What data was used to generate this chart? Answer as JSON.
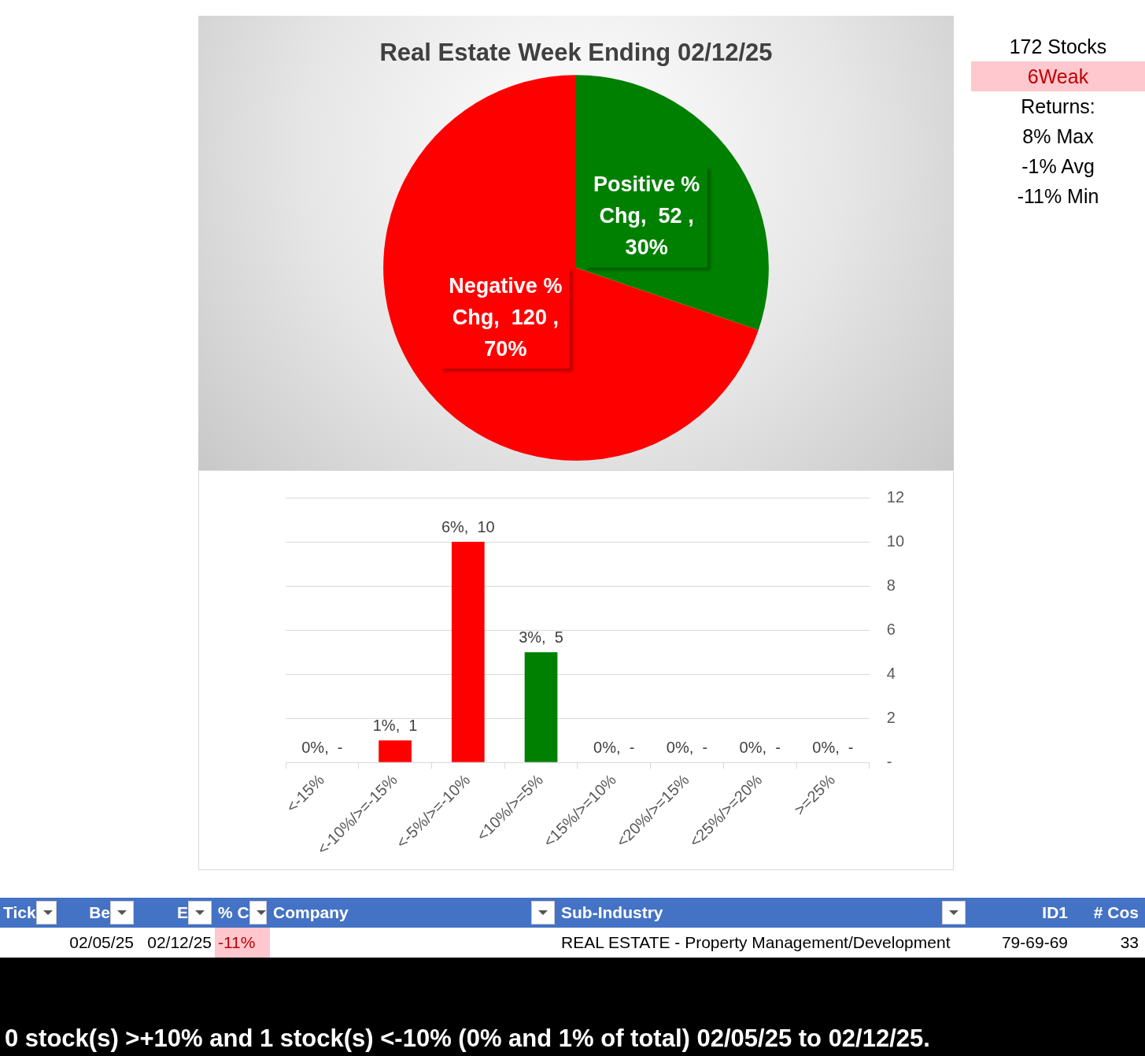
{
  "chart_data": [
    {
      "type": "pie",
      "title": "Real Estate Week Ending 02/12/25",
      "categories": [
        "Positive % Chg",
        "Negative % Chg"
      ],
      "values": [
        52,
        120
      ],
      "colors": [
        "#008000",
        "#ff0000"
      ],
      "value_labels": [
        ",  52 , 30%",
        ",  120 , 70%"
      ]
    },
    {
      "type": "bar",
      "categories": [
        "<-15%",
        "<-10%/>=-15%",
        "<-5%/>=-10%",
        "<10%/>=5%",
        "<15%/>=10%",
        "<20%/>=15%",
        "<25%/>=20%",
        ">=25%"
      ],
      "values": [
        0,
        1,
        10,
        5,
        0,
        0,
        0,
        0
      ],
      "colors": [
        "#ff0000",
        "#ff0000",
        "#ff0000",
        "#008000",
        "#008000",
        "#008000",
        "#008000",
        "#008000"
      ],
      "value_labels": [
        "0%,  -",
        "1%,  1",
        "6%,  10",
        "3%,  5",
        "0%,  -",
        "0%,  -",
        "0%,  -",
        "0%,  -"
      ],
      "ylim": [
        0,
        12
      ],
      "yticks": [
        {
          "value": 0,
          "label": "-"
        },
        2,
        4,
        6,
        8,
        10,
        12
      ],
      "grid": "y"
    },
    {
      "type": "other",
      "annotations": [
        "172 Stocks",
        "6Weak",
        "Returns:",
        "8% Max",
        "-1% Avg",
        "-11% Min"
      ]
    },
    {
      "type": "other",
      "categories": [
        "Tick",
        "Be",
        "E",
        "% C",
        "Company",
        "Sub-Industry",
        "ID1",
        "# Cos"
      ],
      "cell_labels": [
        [
          null,
          "02/05/25",
          "02/12/25",
          "-11%",
          null,
          "REAL ESTATE - Property Management/Development",
          "79-69-69",
          "33"
        ]
      ],
      "annotations": [
        "0 stock(s) >+10% and 1 stock(s) <-10% (0% and 1% of total) 02/05/25 to 02/12/25."
      ]
    }
  ]
}
